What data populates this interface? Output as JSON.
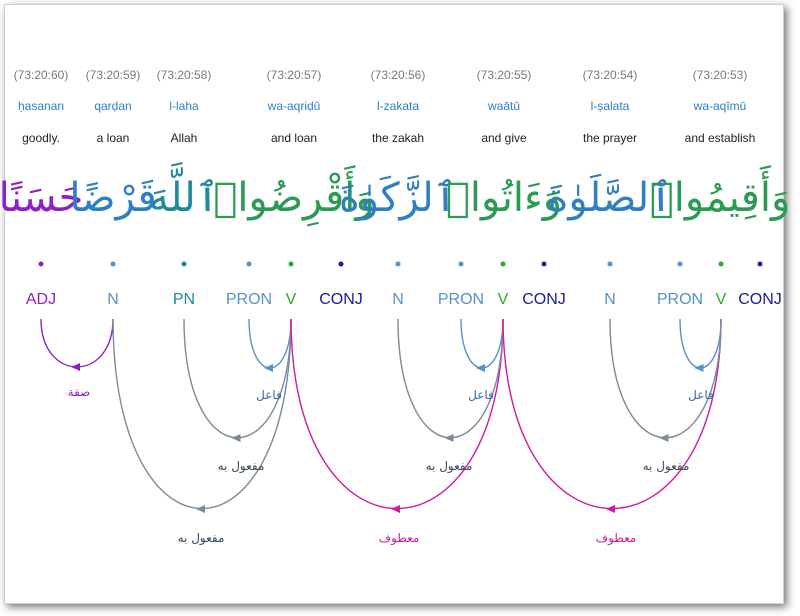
{
  "words": [
    {
      "location": "(73:20:60)",
      "translit": "ḥasanan",
      "translation": "goodly.",
      "arabic": "حَسَنًا",
      "arabic_color": "#8b22c8"
    },
    {
      "location": "(73:20:59)",
      "translit": "qarḍan",
      "translation": "a loan",
      "arabic": "قَرْضًا",
      "arabic_color": "#2f7fc2"
    },
    {
      "location": "(73:20:58)",
      "translit": "l-laha",
      "translation": "Allah",
      "arabic": "ٱللَّهَ",
      "arabic_color": "#1f8a9a"
    },
    {
      "location": "(73:20:57)",
      "translit": "wa-aqriḍū",
      "translation": "and loan",
      "arabic": "وَأَقْرِضُوا۟",
      "arabic_color": "#2a9a55"
    },
    {
      "location": "(73:20:56)",
      "translit": "l-zakata",
      "translation": "the zakah",
      "arabic": "ٱلزَّكَوٰةَ",
      "arabic_color": "#2f7fc2"
    },
    {
      "location": "(73:20:55)",
      "translit": "waātū",
      "translation": "and give",
      "arabic": "وَءَاتُوا۟",
      "arabic_color": "#2a9a55"
    },
    {
      "location": "(73:20:54)",
      "translit": "l-ṣalata",
      "translation": "the prayer",
      "arabic": "ٱلصَّلَوٰةَ",
      "arabic_color": "#2f7fc2"
    },
    {
      "location": "(73:20:53)",
      "translit": "wa-aqīmū",
      "translation": "and establish",
      "arabic": "وَأَقِيمُوا۟",
      "arabic_color": "#2a9a55"
    }
  ],
  "tags": [
    {
      "label": "ADJ",
      "color": "#8b22c8"
    },
    {
      "label": "N",
      "color": "#5b8fc8"
    },
    {
      "label": "PN",
      "color": "#1f8a9a"
    },
    {
      "label": "PRON",
      "color": "#5b8fc8"
    },
    {
      "label": "V",
      "color": "#26b026"
    },
    {
      "label": "CONJ",
      "color": "#1a1a9a"
    },
    {
      "label": "N",
      "color": "#5b8fc8"
    },
    {
      "label": "PRON",
      "color": "#5b8fc8"
    },
    {
      "label": "V",
      "color": "#26b026"
    },
    {
      "label": "CONJ",
      "color": "#1a1a9a"
    },
    {
      "label": "N",
      "color": "#5b8fc8"
    },
    {
      "label": "PRON",
      "color": "#5b8fc8"
    },
    {
      "label": "V",
      "color": "#26b026"
    },
    {
      "label": "CONJ",
      "color": "#1a1a9a"
    }
  ],
  "relations": [
    {
      "label": "صفة",
      "from": 1,
      "to": 0,
      "color": "#8b22c8"
    },
    {
      "label": "فاعل",
      "from": 4,
      "to": 3,
      "color": "#5b8fc8"
    },
    {
      "label": "مفعول به",
      "from": 4,
      "to": 2,
      "color": "#7a8a9a"
    },
    {
      "label": "مفعول به",
      "from": 4,
      "to": 1,
      "color": "#7a8a9a"
    },
    {
      "label": "معطوف",
      "from": 8,
      "to": 4,
      "color": "#d01aa0"
    },
    {
      "label": "فاعل",
      "from": 8,
      "to": 7,
      "color": "#5b8fc8"
    },
    {
      "label": "مفعول به",
      "from": 8,
      "to": 6,
      "color": "#7a8a9a"
    },
    {
      "label": "معطوف",
      "from": 12,
      "to": 8,
      "color": "#d01aa0"
    },
    {
      "label": "فاعل",
      "from": 12,
      "to": 11,
      "color": "#5b8fc8"
    },
    {
      "label": "مفعول به",
      "from": 12,
      "to": 10,
      "color": "#7a8a9a"
    }
  ]
}
